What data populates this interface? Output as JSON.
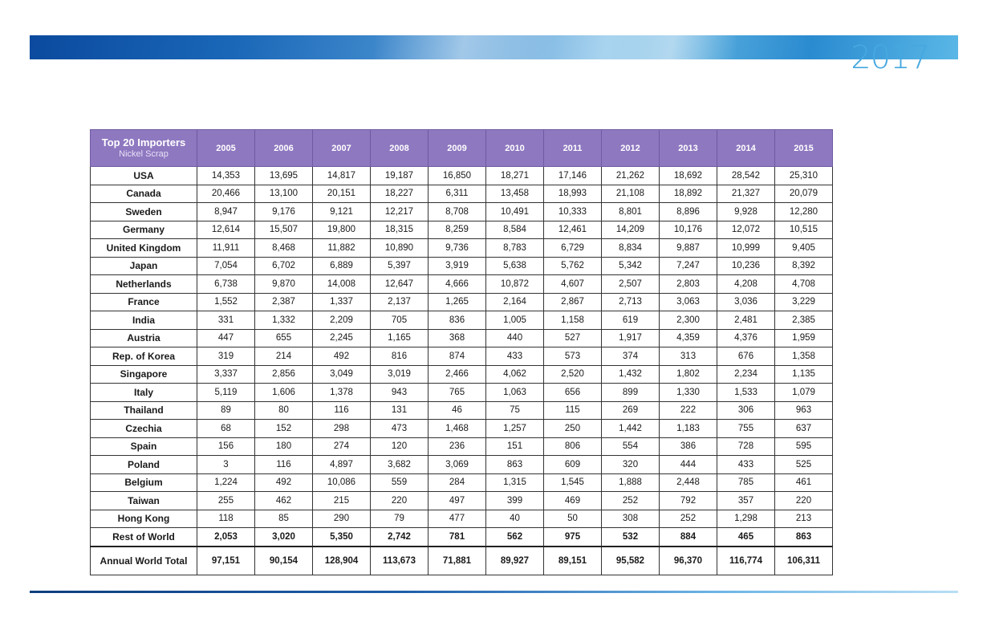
{
  "header": {
    "year_mark": "2017"
  },
  "table": {
    "title": "Top 20 Importers",
    "subtitle": "Nickel Scrap",
    "years": [
      "2005",
      "2006",
      "2007",
      "2008",
      "2009",
      "2010",
      "2011",
      "2012",
      "2013",
      "2014",
      "2015"
    ],
    "rows": [
      {
        "country": "USA",
        "values": [
          "14,353",
          "13,695",
          "14,817",
          "19,187",
          "16,850",
          "18,271",
          "17,146",
          "21,262",
          "18,692",
          "28,542",
          "25,310"
        ]
      },
      {
        "country": "Canada",
        "values": [
          "20,466",
          "13,100",
          "20,151",
          "18,227",
          "6,311",
          "13,458",
          "18,993",
          "21,108",
          "18,892",
          "21,327",
          "20,079"
        ]
      },
      {
        "country": "Sweden",
        "values": [
          "8,947",
          "9,176",
          "9,121",
          "12,217",
          "8,708",
          "10,491",
          "10,333",
          "8,801",
          "8,896",
          "9,928",
          "12,280"
        ]
      },
      {
        "country": "Germany",
        "values": [
          "12,614",
          "15,507",
          "19,800",
          "18,315",
          "8,259",
          "8,584",
          "12,461",
          "14,209",
          "10,176",
          "12,072",
          "10,515"
        ]
      },
      {
        "country": "United Kingdom",
        "values": [
          "11,911",
          "8,468",
          "11,882",
          "10,890",
          "9,736",
          "8,783",
          "6,729",
          "8,834",
          "9,887",
          "10,999",
          "9,405"
        ]
      },
      {
        "country": "Japan",
        "values": [
          "7,054",
          "6,702",
          "6,889",
          "5,397",
          "3,919",
          "5,638",
          "5,762",
          "5,342",
          "7,247",
          "10,236",
          "8,392"
        ]
      },
      {
        "country": "Netherlands",
        "values": [
          "6,738",
          "9,870",
          "14,008",
          "12,647",
          "4,666",
          "10,872",
          "4,607",
          "2,507",
          "2,803",
          "4,208",
          "4,708"
        ]
      },
      {
        "country": "France",
        "values": [
          "1,552",
          "2,387",
          "1,337",
          "2,137",
          "1,265",
          "2,164",
          "2,867",
          "2,713",
          "3,063",
          "3,036",
          "3,229"
        ]
      },
      {
        "country": "India",
        "values": [
          "331",
          "1,332",
          "2,209",
          "705",
          "836",
          "1,005",
          "1,158",
          "619",
          "2,300",
          "2,481",
          "2,385"
        ]
      },
      {
        "country": "Austria",
        "values": [
          "447",
          "655",
          "2,245",
          "1,165",
          "368",
          "440",
          "527",
          "1,917",
          "4,359",
          "4,376",
          "1,959"
        ]
      },
      {
        "country": "Rep. of Korea",
        "values": [
          "319",
          "214",
          "492",
          "816",
          "874",
          "433",
          "573",
          "374",
          "313",
          "676",
          "1,358"
        ]
      },
      {
        "country": "Singapore",
        "values": [
          "3,337",
          "2,856",
          "3,049",
          "3,019",
          "2,466",
          "4,062",
          "2,520",
          "1,432",
          "1,802",
          "2,234",
          "1,135"
        ]
      },
      {
        "country": "Italy",
        "values": [
          "5,119",
          "1,606",
          "1,378",
          "943",
          "765",
          "1,063",
          "656",
          "899",
          "1,330",
          "1,533",
          "1,079"
        ]
      },
      {
        "country": "Thailand",
        "values": [
          "89",
          "80",
          "116",
          "131",
          "46",
          "75",
          "115",
          "269",
          "222",
          "306",
          "963"
        ]
      },
      {
        "country": "Czechia",
        "values": [
          "68",
          "152",
          "298",
          "473",
          "1,468",
          "1,257",
          "250",
          "1,442",
          "1,183",
          "755",
          "637"
        ]
      },
      {
        "country": "Spain",
        "values": [
          "156",
          "180",
          "274",
          "120",
          "236",
          "151",
          "806",
          "554",
          "386",
          "728",
          "595"
        ]
      },
      {
        "country": "Poland",
        "values": [
          "3",
          "116",
          "4,897",
          "3,682",
          "3,069",
          "863",
          "609",
          "320",
          "444",
          "433",
          "525"
        ]
      },
      {
        "country": "Belgium",
        "values": [
          "1,224",
          "492",
          "10,086",
          "559",
          "284",
          "1,315",
          "1,545",
          "1,888",
          "2,448",
          "785",
          "461"
        ]
      },
      {
        "country": "Taiwan",
        "values": [
          "255",
          "462",
          "215",
          "220",
          "497",
          "399",
          "469",
          "252",
          "792",
          "357",
          "220"
        ]
      },
      {
        "country": "Hong Kong",
        "values": [
          "118",
          "85",
          "290",
          "79",
          "477",
          "40",
          "50",
          "308",
          "252",
          "1,298",
          "213"
        ]
      }
    ],
    "rest": {
      "country": "Rest of World",
      "values": [
        "2,053",
        "3,020",
        "5,350",
        "2,742",
        "781",
        "562",
        "975",
        "532",
        "884",
        "465",
        "863"
      ]
    },
    "total": {
      "country": "Annual World Total",
      "values": [
        "97,151",
        "90,154",
        "128,904",
        "113,673",
        "71,881",
        "89,927",
        "89,151",
        "95,582",
        "96,370",
        "116,774",
        "106,311"
      ]
    }
  },
  "colors": {
    "header_purple": "#8e78c0",
    "year_blue": "#45a8df",
    "banner_dark_blue": "#0b4a9e"
  }
}
